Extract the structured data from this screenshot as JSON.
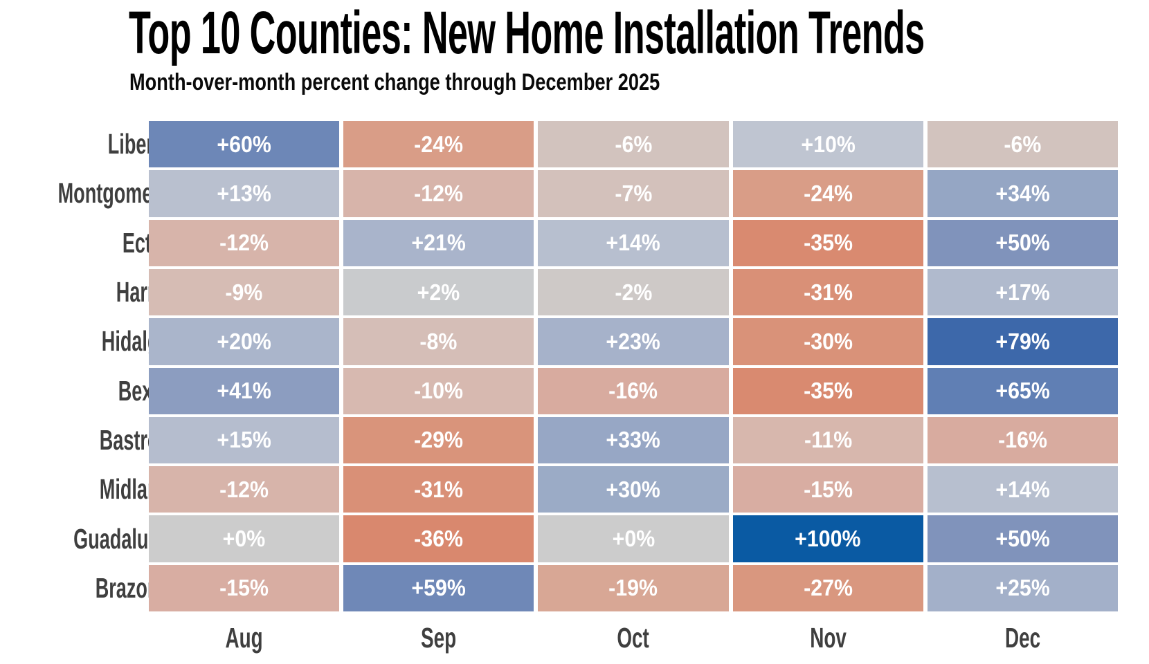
{
  "chart_data": {
    "type": "heatmap",
    "title": "Top 10 Counties: New Home Installation Trends",
    "subtitle": "Month-over-month percent change through December 2025",
    "rows": [
      "Liberty",
      "Montgomery",
      "Ector",
      "Harris",
      "Hidalgo",
      "Bexar",
      "Bastrop",
      "Midland",
      "Guadalupe",
      "Brazoria"
    ],
    "columns": [
      "Aug",
      "Sep",
      "Oct",
      "Nov",
      "Dec"
    ],
    "values": [
      [
        60,
        -24,
        -6,
        10,
        -6
      ],
      [
        13,
        -12,
        -7,
        -24,
        34
      ],
      [
        -12,
        21,
        14,
        -35,
        50
      ],
      [
        -9,
        2,
        -2,
        -31,
        17
      ],
      [
        20,
        -8,
        23,
        -30,
        79
      ],
      [
        41,
        -10,
        -16,
        -35,
        65
      ],
      [
        15,
        -29,
        33,
        -11,
        -16
      ],
      [
        -12,
        -31,
        30,
        -15,
        14
      ],
      [
        0,
        -36,
        0,
        100,
        50
      ],
      [
        -15,
        59,
        -19,
        -27,
        25
      ]
    ],
    "value_format": "signed_percent",
    "legend": "none",
    "grid_on": false,
    "colormap": {
      "domain": [
        -100,
        100
      ],
      "neutral": "#cccccc",
      "positive_stops": [
        [
          0.0,
          "#cccccc"
        ],
        [
          0.1,
          "#bfc5d1"
        ],
        [
          0.2,
          "#aab5cb"
        ],
        [
          0.3,
          "#9babc6"
        ],
        [
          0.4,
          "#8d9ec1"
        ],
        [
          0.5,
          "#8093bb"
        ],
        [
          0.6,
          "#6d87b7"
        ],
        [
          0.8,
          "#3a66a9"
        ],
        [
          1.0,
          "#0a5aa3"
        ]
      ],
      "negative_stops": [
        [
          0.0,
          "#cccccc"
        ],
        [
          0.06,
          "#d2c3be"
        ],
        [
          0.1,
          "#d7b9b0"
        ],
        [
          0.16,
          "#d8ab9f"
        ],
        [
          0.2,
          "#d8a592"
        ],
        [
          0.27,
          "#d9977f"
        ],
        [
          0.36,
          "#d9886e"
        ],
        [
          1.0,
          "#c24b28"
        ]
      ]
    },
    "cell_text_color": "#ffffff",
    "label_color": "#3f3f3f"
  }
}
